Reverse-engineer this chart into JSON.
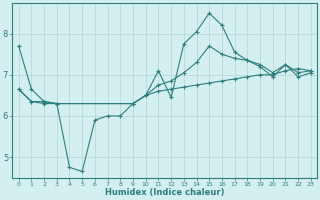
{
  "xlabel": "Humidex (Indice chaleur)",
  "bg_color": "#d4efef",
  "grid_color": "#b8d8d8",
  "line_color": "#2d7f7f",
  "x_min": -0.5,
  "x_max": 23.5,
  "y_min": 4.5,
  "y_max": 8.75,
  "yticks": [
    5,
    6,
    7,
    8
  ],
  "xticks": [
    0,
    1,
    2,
    3,
    4,
    5,
    6,
    7,
    8,
    9,
    10,
    11,
    12,
    13,
    14,
    15,
    16,
    17,
    18,
    19,
    20,
    21,
    22,
    23
  ],
  "series": [
    {
      "x": [
        0,
        1,
        2,
        3,
        4,
        5,
        6,
        7,
        8,
        9,
        10,
        11,
        12,
        13,
        14,
        15,
        16,
        17,
        18,
        19,
        20,
        21,
        22,
        23
      ],
      "y": [
        7.7,
        6.65,
        6.35,
        6.3,
        4.75,
        4.65,
        5.9,
        6.0,
        6.0,
        6.3,
        6.5,
        7.1,
        6.45,
        7.75,
        8.05,
        8.5,
        8.2,
        7.55,
        7.35,
        7.2,
        6.95,
        7.25,
        6.95,
        7.05
      ]
    },
    {
      "x": [
        0,
        1,
        2,
        3,
        9,
        10,
        11,
        12,
        13,
        14,
        15,
        16,
        17,
        18,
        19,
        20,
        21,
        22,
        23
      ],
      "y": [
        6.65,
        6.35,
        6.3,
        6.3,
        6.3,
        6.5,
        6.6,
        6.65,
        6.7,
        6.75,
        6.8,
        6.85,
        6.9,
        6.95,
        7.0,
        7.0,
        7.1,
        7.15,
        7.1
      ]
    },
    {
      "x": [
        0,
        1,
        2,
        3,
        9,
        10,
        11,
        12,
        13,
        14,
        15,
        16,
        17,
        18,
        19,
        20,
        21,
        22,
        23
      ],
      "y": [
        6.65,
        6.35,
        6.35,
        6.3,
        6.3,
        6.5,
        6.75,
        6.85,
        7.05,
        7.3,
        7.7,
        7.5,
        7.4,
        7.35,
        7.25,
        7.05,
        7.25,
        7.05,
        7.1
      ]
    }
  ]
}
